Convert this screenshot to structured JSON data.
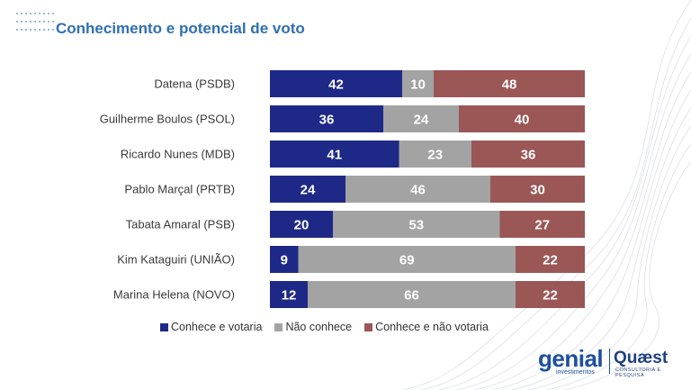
{
  "header": {
    "title": "Conhecimento e potencial de voto"
  },
  "logos": {
    "genial": "genial",
    "genial_sub": "investimentos",
    "quaest": "Quæst",
    "quaest_sub": "CONSULTORIA E PESQUISA"
  },
  "colors": {
    "conhece_votaria": "#1e2987",
    "nao_conhece": "#a3a3a3",
    "conhece_nao_votaria": "#9b5656",
    "title": "#2f6fb3"
  },
  "chart_data": {
    "type": "bar",
    "orientation": "horizontal",
    "stacked": true,
    "categories": [
      "Datena (PSDB)",
      "Guilherme Boulos (PSOL)",
      "Ricardo Nunes (MDB)",
      "Pablo Marçal (PRTB)",
      "Tabata Amaral (PSB)",
      "Kim Kataguiri (UNIÃO)",
      "Marina Helena (NOVO)"
    ],
    "series": [
      {
        "name": "Conhece e votaria",
        "color": "#1e2987",
        "values": [
          42,
          36,
          41,
          24,
          20,
          9,
          12
        ]
      },
      {
        "name": "Não conhece",
        "color": "#a3a3a3",
        "values": [
          10,
          24,
          23,
          46,
          53,
          69,
          66
        ]
      },
      {
        "name": "Conhece e não votaria",
        "color": "#9b5656",
        "values": [
          48,
          40,
          36,
          30,
          27,
          22,
          22
        ]
      }
    ],
    "xlim": [
      0,
      100
    ],
    "legend": "bottom",
    "grid": false
  }
}
